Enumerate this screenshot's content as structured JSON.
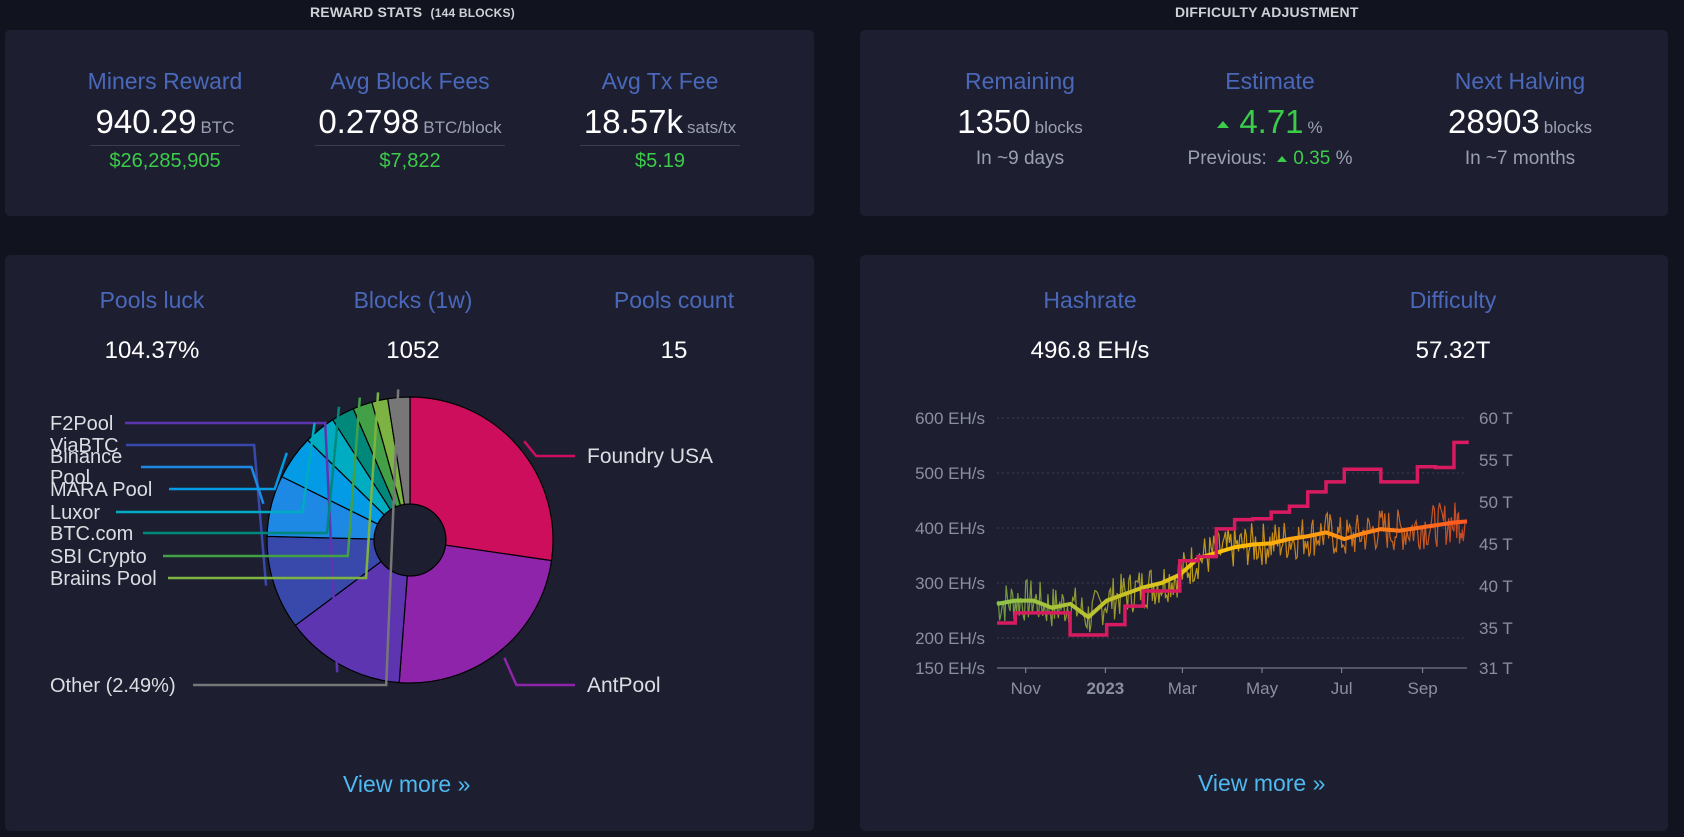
{
  "reward_stats": {
    "title": "REWARD STATS",
    "blocks_note": "(144 BLOCKS)",
    "items": [
      {
        "label": "Miners Reward",
        "value": "940.29",
        "unit": "BTC",
        "fiat": "$26,285,905"
      },
      {
        "label": "Avg Block Fees",
        "value": "0.2798",
        "unit": "BTC/block",
        "fiat": "$7,822"
      },
      {
        "label": "Avg Tx Fee",
        "value": "18.57k",
        "unit": "sats/tx",
        "fiat": "$5.19"
      }
    ]
  },
  "difficulty_adjustment": {
    "title": "DIFFICULTY ADJUSTMENT",
    "remaining": {
      "label": "Remaining",
      "value": "1350",
      "unit": "blocks",
      "sub": "In ~9 days"
    },
    "estimate": {
      "label": "Estimate",
      "value": "4.71",
      "unit": "%",
      "previous_label": "Previous:",
      "previous_value": "0.35",
      "previous_unit": "%"
    },
    "next_halving": {
      "label": "Next Halving",
      "value": "28903",
      "unit": "blocks",
      "sub": "In ~7 months"
    }
  },
  "pools": {
    "luck": {
      "label": "Pools luck",
      "value": "104.37%"
    },
    "blocks": {
      "label": "Blocks (1w)",
      "value": "1052"
    },
    "count": {
      "label": "Pools count",
      "value": "15"
    },
    "view_more": "View more »"
  },
  "hashrate": {
    "hashrate": {
      "label": "Hashrate",
      "value": "496.8 EH/s"
    },
    "difficulty": {
      "label": "Difficulty",
      "value": "57.32T"
    },
    "view_more": "View more »"
  },
  "colors": {
    "accent_label": "#4a68b9",
    "positive": "#3bcc49",
    "link": "#4fb8f0",
    "difficulty_line": "#d81b60"
  },
  "chart_data": [
    {
      "type": "pie",
      "donut": true,
      "slices": [
        {
          "name": "Foundry USA",
          "value": 27.3,
          "color": "#cc0e5c"
        },
        {
          "name": "AntPool",
          "value": 23.9,
          "color": "#8e24aa"
        },
        {
          "name": "F2Pool",
          "value": 13.6,
          "color": "#5e35b1"
        },
        {
          "name": "ViaBTC",
          "value": 10.6,
          "color": "#3949ab"
        },
        {
          "name": "Binance Pool",
          "value": 6.9,
          "color": "#1e88e5"
        },
        {
          "name": "MARA Pool",
          "value": 5.0,
          "color": "#039be5"
        },
        {
          "name": "Luxor",
          "value": 3.6,
          "color": "#00acc1"
        },
        {
          "name": "BTC.com",
          "value": 2.6,
          "color": "#00897b"
        },
        {
          "name": "SBI Crypto",
          "value": 2.2,
          "color": "#43a047"
        },
        {
          "name": "Braiins Pool",
          "value": 1.8,
          "color": "#7cb342"
        },
        {
          "name": "Other (2.49%)",
          "value": 2.49,
          "color": "#777777"
        }
      ]
    },
    {
      "type": "line",
      "x_tick_labels": [
        "Nov",
        "2023",
        "Mar",
        "May",
        "Jul",
        "Sep"
      ],
      "x_range": [
        "2022-10-10",
        "2023-10-05"
      ],
      "y_left": {
        "unit": "EH/s",
        "ticks": [
          "150 EH/s",
          "200 EH/s",
          "300 EH/s",
          "400 EH/s",
          "500 EH/s",
          "600 EH/s"
        ],
        "range": [
          150,
          600
        ]
      },
      "y_right": {
        "unit": "T",
        "ticks": [
          "31 T",
          "35 T",
          "40 T",
          "45 T",
          "50 T",
          "55 T",
          "60 T"
        ],
        "range": [
          31,
          60
        ]
      },
      "grid": true,
      "series": [
        {
          "axis": "right",
          "step": true,
          "color": "#d81b60",
          "points": [
            [
              "2022-10-10",
              35.6
            ],
            [
              "2022-10-24",
              36.8
            ],
            [
              "2022-11-07",
              36.8
            ],
            [
              "2022-11-21",
              36.8
            ],
            [
              "2022-12-05",
              34.3
            ],
            [
              "2022-12-19",
              34.3
            ],
            [
              "2023-01-02",
              35.4
            ],
            [
              "2023-01-16",
              37.6
            ],
            [
              "2023-01-30",
              39.4
            ],
            [
              "2023-02-13",
              39.4
            ],
            [
              "2023-02-27",
              43.0
            ],
            [
              "2023-03-13",
              43.5
            ],
            [
              "2023-03-27",
              46.8
            ],
            [
              "2023-04-10",
              47.9
            ],
            [
              "2023-04-24",
              48.0
            ],
            [
              "2023-05-08",
              48.8
            ],
            [
              "2023-05-22",
              49.5
            ],
            [
              "2023-06-05",
              51.2
            ],
            [
              "2023-06-19",
              52.4
            ],
            [
              "2023-07-03",
              53.9
            ],
            [
              "2023-07-17",
              53.9
            ],
            [
              "2023-07-31",
              52.4
            ],
            [
              "2023-08-14",
              52.4
            ],
            [
              "2023-08-28",
              54.2
            ],
            [
              "2023-09-11",
              54.1
            ],
            [
              "2023-09-25",
              57.1
            ],
            [
              "2023-10-05",
              57.32
            ]
          ]
        },
        {
          "axis": "left",
          "name_shown": false,
          "color_gradient": [
            "#8bc34a",
            "#ffc107",
            "#ff5722"
          ],
          "points": [
            [
              "2022-10-10",
              262
            ],
            [
              "2022-10-24",
              268
            ],
            [
              "2022-11-07",
              268
            ],
            [
              "2022-11-21",
              255
            ],
            [
              "2022-12-05",
              262
            ],
            [
              "2022-12-19",
              238
            ],
            [
              "2023-01-02",
              268
            ],
            [
              "2023-01-16",
              280
            ],
            [
              "2023-01-30",
              292
            ],
            [
              "2023-02-13",
              300
            ],
            [
              "2023-02-27",
              315
            ],
            [
              "2023-03-13",
              345
            ],
            [
              "2023-03-27",
              355
            ],
            [
              "2023-04-10",
              365
            ],
            [
              "2023-04-24",
              370
            ],
            [
              "2023-05-08",
              372
            ],
            [
              "2023-05-22",
              380
            ],
            [
              "2023-06-05",
              385
            ],
            [
              "2023-06-19",
              392
            ],
            [
              "2023-07-03",
              380
            ],
            [
              "2023-07-17",
              390
            ],
            [
              "2023-07-31",
              398
            ],
            [
              "2023-08-14",
              395
            ],
            [
              "2023-08-28",
              400
            ],
            [
              "2023-09-11",
              405
            ],
            [
              "2023-09-25",
              410
            ],
            [
              "2023-10-05",
              412
            ]
          ]
        }
      ]
    }
  ]
}
